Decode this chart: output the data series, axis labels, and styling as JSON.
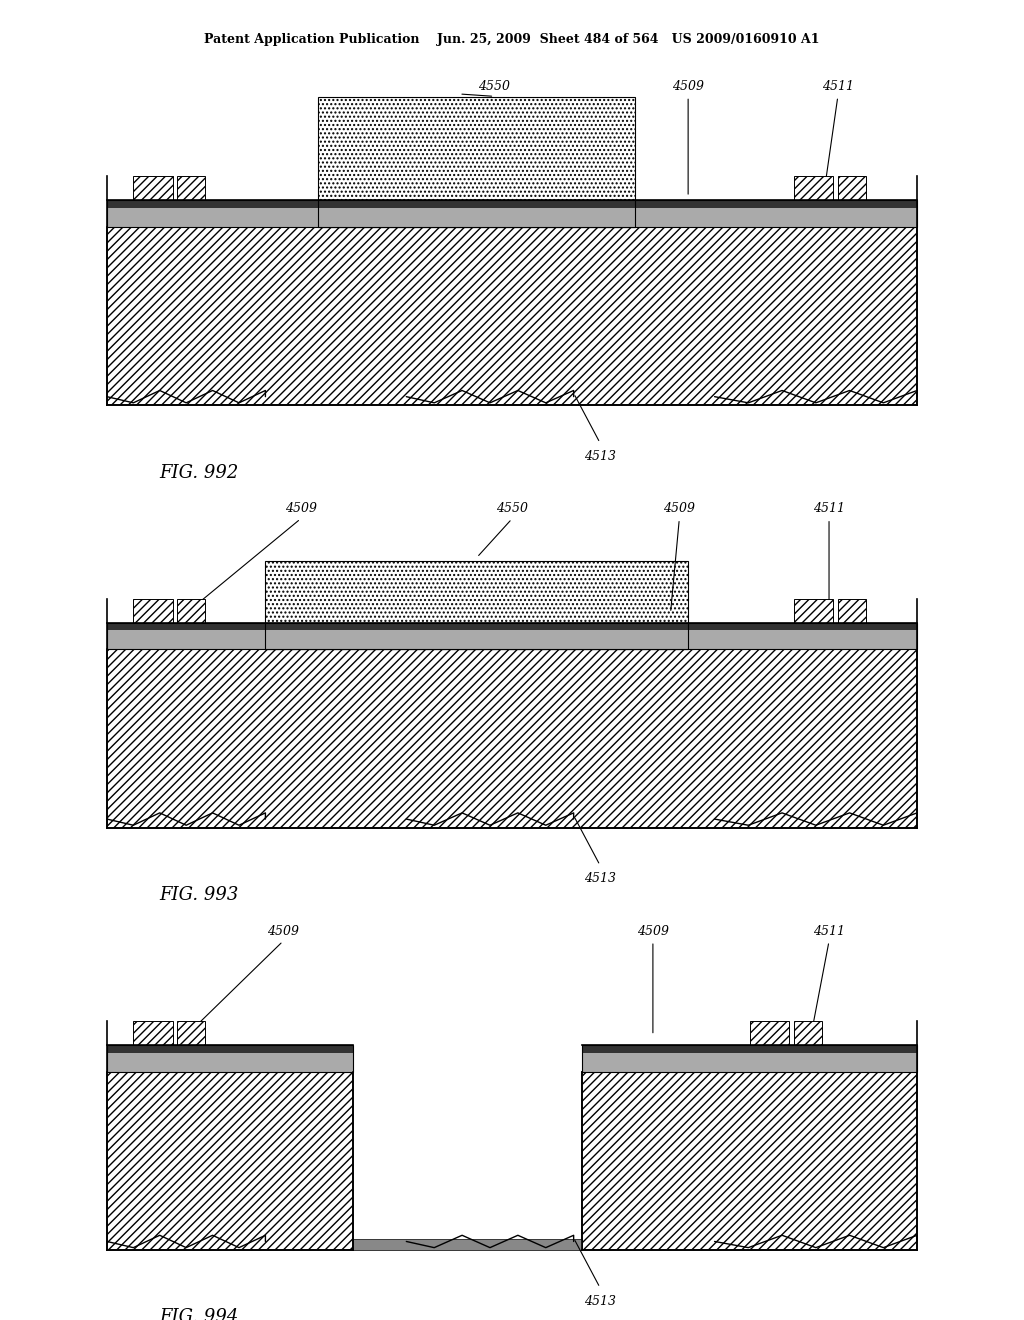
{
  "header_text": "Patent Application Publication    Jun. 25, 2009  Sheet 484 of 564   US 2009/0160910 A1",
  "fig992_label": "FIG. 992",
  "fig993_label": "FIG. 993",
  "fig994_label": "FIG. 994",
  "background_color": "#ffffff",
  "line_color": "#000000"
}
